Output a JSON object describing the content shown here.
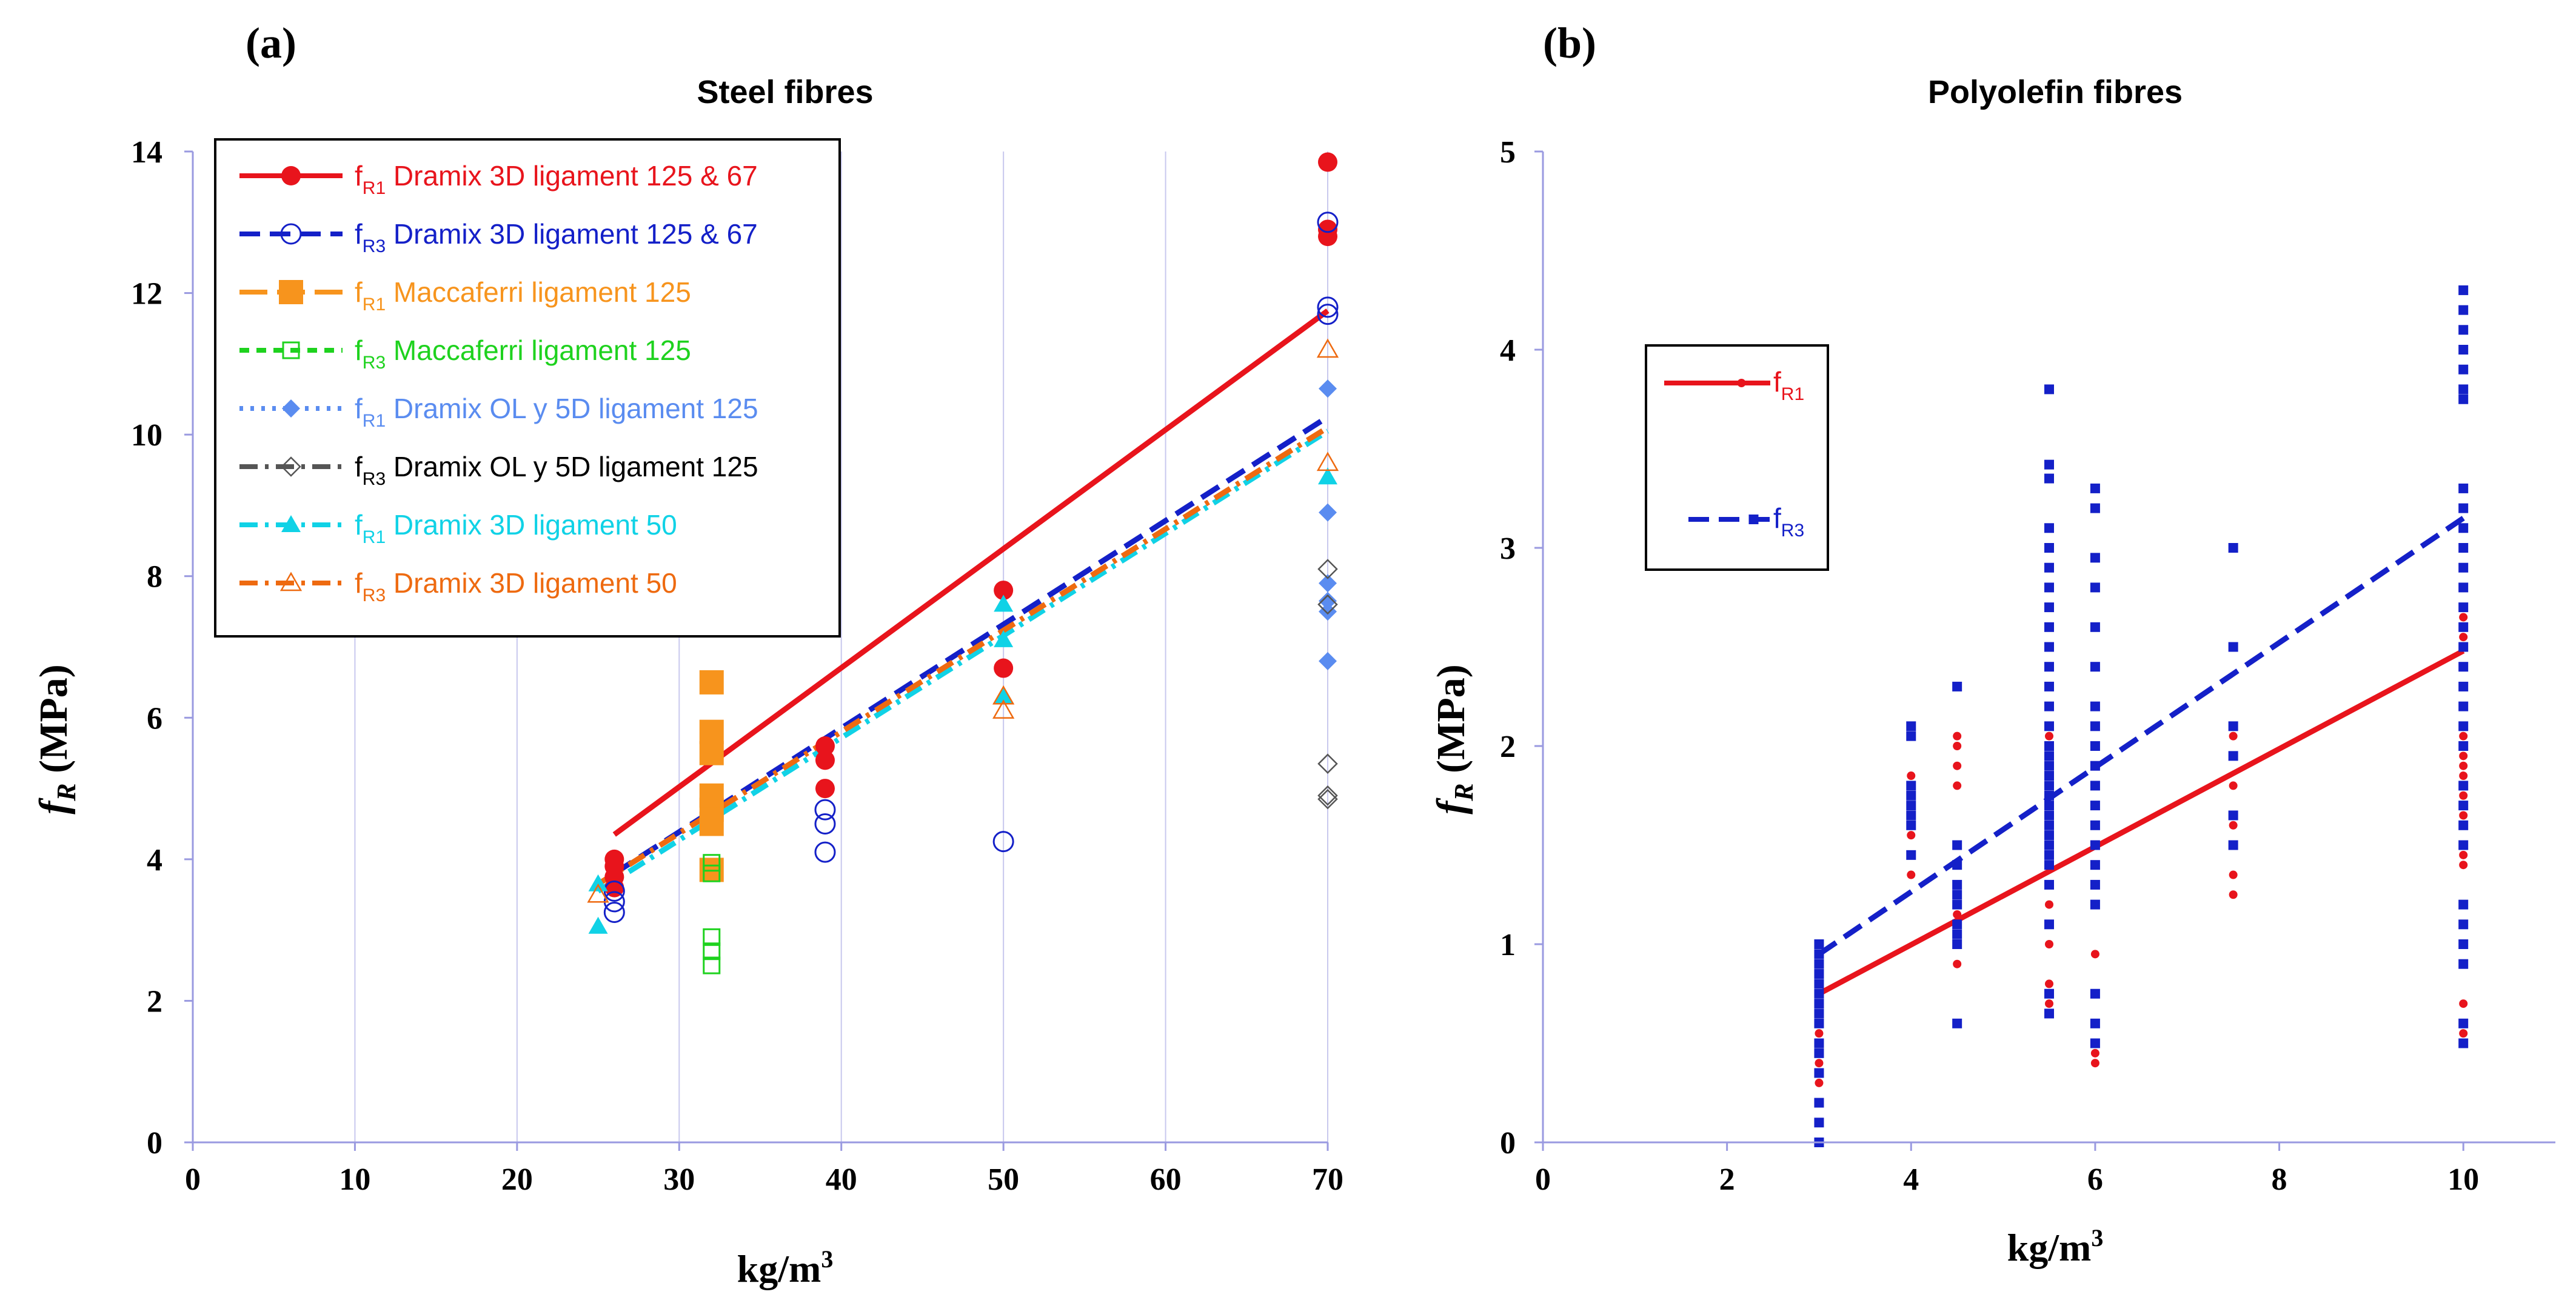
{
  "chart_data": [
    {
      "panel": "(a)",
      "type": "scatter",
      "title": "Steel fibres",
      "xlabel": "kg/m3",
      "ylabel": "fR (MPa)",
      "xlim": [
        0,
        70
      ],
      "ylim": [
        0,
        14
      ],
      "xticks": [
        0,
        10,
        20,
        30,
        40,
        50,
        60,
        70
      ],
      "yticks": [
        0,
        2,
        4,
        6,
        8,
        10,
        12,
        14
      ],
      "legend_position": "top-left",
      "series": [
        {
          "name": "fR1 Dramix 3D ligament 125 & 67",
          "sym": "f",
          "sub": "R1",
          "text": "Dramix 3D ligament 125 & 67",
          "color": "#e8141c",
          "text_color": "#e8141c",
          "marker": "circle-filled",
          "dash": "solid",
          "points": [
            [
              26,
              3.6
            ],
            [
              26,
              3.75
            ],
            [
              26,
              3.9
            ],
            [
              26,
              4.0
            ],
            [
              39,
              5.0
            ],
            [
              39,
              5.4
            ],
            [
              39,
              5.6
            ],
            [
              50,
              6.7
            ],
            [
              50,
              7.8
            ],
            [
              70,
              12.8
            ],
            [
              70,
              12.9
            ],
            [
              70,
              13.85
            ]
          ],
          "fit": [
            [
              26,
              4.35
            ],
            [
              70,
              11.75
            ]
          ]
        },
        {
          "name": "fR3 Dramix 3D ligament 125 & 67",
          "sym": "f",
          "sub": "R3",
          "text": "Dramix 3D ligament 125 & 67",
          "color": "#1420c8",
          "text_color": "#1420c8",
          "marker": "circle-open",
          "dash": "dash",
          "points": [
            [
              26,
              3.25
            ],
            [
              26,
              3.4
            ],
            [
              26,
              3.55
            ],
            [
              39,
              4.1
            ],
            [
              39,
              4.5
            ],
            [
              39,
              4.7
            ],
            [
              50,
              4.25
            ],
            [
              70,
              11.7
            ],
            [
              70,
              11.8
            ],
            [
              70,
              13.0
            ]
          ],
          "fit": [
            [
              26,
              3.8
            ],
            [
              70,
              10.25
            ]
          ]
        },
        {
          "name": "fR1 Maccaferri ligament 125",
          "sym": "f",
          "sub": "R1",
          "text": "Maccaferri ligament 125",
          "color": "#f7941d",
          "text_color": "#f7941d",
          "marker": "square-filled",
          "dash": "longdash",
          "points": [
            [
              32,
              3.85
            ],
            [
              32,
              4.5
            ],
            [
              32,
              4.7
            ],
            [
              32,
              4.9
            ],
            [
              32,
              5.5
            ],
            [
              32,
              5.8
            ],
            [
              32,
              6.5
            ]
          ],
          "fit": null
        },
        {
          "name": "fR3 Maccaferri ligament 125",
          "sym": "f",
          "sub": "R3",
          "text": "Maccaferri ligament 125",
          "color": "#1ed21e",
          "text_color": "#1ed21e",
          "marker": "square-open",
          "dash": "shortdash",
          "points": [
            [
              32,
              2.5
            ],
            [
              32,
              2.7
            ],
            [
              32,
              2.9
            ],
            [
              32,
              3.8
            ],
            [
              32,
              3.95
            ]
          ],
          "fit": null
        },
        {
          "name": "fR1 Dramix OL y 5D ligament 125",
          "sym": "f",
          "sub": "R1",
          "text": "Dramix OL y 5D ligament 125",
          "color": "#5a8cf0",
          "text_color": "#5a8cf0",
          "marker": "diamond-filled",
          "dash": "dot",
          "points": [
            [
              70,
              6.8
            ],
            [
              70,
              7.5
            ],
            [
              70,
              7.65
            ],
            [
              70,
              7.9
            ],
            [
              70,
              8.9
            ],
            [
              70,
              10.65
            ]
          ],
          "fit": null
        },
        {
          "name": "fR3 Dramix OL y 5D ligament 125",
          "sym": "f",
          "sub": "R3",
          "text": "Dramix OL y 5D ligament 125",
          "color": "#555555",
          "text_color": "#000000",
          "marker": "diamond-open",
          "dash": "dashdot",
          "points": [
            [
              70,
              4.85
            ],
            [
              70,
              4.9
            ],
            [
              70,
              5.35
            ],
            [
              70,
              7.6
            ],
            [
              70,
              8.1
            ]
          ],
          "fit": null
        },
        {
          "name": "fR1 Dramix 3D ligament 50",
          "sym": "f",
          "sub": "R1",
          "text": "Dramix 3D ligament 50",
          "color": "#10d2e6",
          "text_color": "#10d2e6",
          "marker": "triangle-filled",
          "dash": "dashdot",
          "points": [
            [
              25,
              3.05
            ],
            [
              25,
              3.65
            ],
            [
              50,
              6.3
            ],
            [
              50,
              7.1
            ],
            [
              50,
              7.6
            ],
            [
              70,
              9.4
            ]
          ],
          "fit": [
            [
              25,
              3.55
            ],
            [
              70,
              10.05
            ]
          ]
        },
        {
          "name": "fR3 Dramix 3D ligament 50",
          "sym": "f",
          "sub": "R3",
          "text": "Dramix 3D ligament 50",
          "color": "#ee6a10",
          "text_color": "#ee6a10",
          "marker": "triangle-open",
          "dash": "dashdot",
          "points": [
            [
              25,
              3.5
            ],
            [
              50,
              6.1
            ],
            [
              50,
              6.3
            ],
            [
              70,
              9.6
            ],
            [
              70,
              11.2
            ]
          ],
          "fit": [
            [
              25,
              3.65
            ],
            [
              70,
              10.1
            ]
          ]
        }
      ]
    },
    {
      "panel": "(b)",
      "type": "scatter",
      "title": "Polyolefin fibres",
      "xlabel": "kg/m3",
      "ylabel": "fR (MPa)",
      "xlim": [
        0,
        11
      ],
      "ylim": [
        0,
        5
      ],
      "xticks": [
        0,
        2,
        4,
        6,
        8,
        10
      ],
      "yticks": [
        0,
        1,
        2,
        3,
        4,
        5
      ],
      "legend_position": "upper-left",
      "series": [
        {
          "name": "fR1",
          "sym": "f",
          "sub": "R1",
          "text": "",
          "color": "#e8141c",
          "marker": "dot-small",
          "dash": "solid",
          "groups": [
            {
              "x": 3,
              "values": [
                0.3,
                0.35,
                0.4,
                0.5,
                0.55,
                0.6,
                0.65,
                0.7,
                0.75,
                0.8,
                0.85,
                0.9
              ]
            },
            {
              "x": 4,
              "values": [
                1.35,
                1.45,
                1.55,
                1.6,
                1.65,
                1.7,
                1.75,
                1.8,
                1.85
              ]
            },
            {
              "x": 4.5,
              "values": [
                0.9,
                1.0,
                1.05,
                1.1,
                1.15,
                1.2,
                1.3,
                1.4,
                1.5,
                1.8,
                1.9,
                2.0,
                2.05
              ]
            },
            {
              "x": 5.5,
              "values": [
                0.7,
                0.8,
                1.0,
                1.1,
                1.2,
                1.3,
                1.4,
                1.5,
                1.55,
                1.6,
                1.65,
                1.7,
                1.75,
                1.8,
                1.85,
                1.9,
                1.95,
                2.0,
                2.05,
                2.1,
                2.2,
                2.3,
                2.4,
                2.5,
                2.6,
                2.7,
                3.0,
                3.35
              ]
            },
            {
              "x": 6,
              "values": [
                0.4,
                0.45,
                0.95,
                1.2,
                1.3,
                1.4,
                1.5,
                1.6,
                1.7,
                1.8,
                1.9,
                2.0
              ]
            },
            {
              "x": 7.5,
              "values": [
                1.25,
                1.35,
                1.6,
                1.8,
                2.05
              ]
            },
            {
              "x": 10,
              "values": [
                0.5,
                0.55,
                0.6,
                0.7,
                1.0,
                1.1,
                1.4,
                1.45,
                1.65,
                1.7,
                1.75,
                1.8,
                1.85,
                1.9,
                1.95,
                2.0,
                2.05,
                2.1,
                2.2,
                2.3,
                2.4,
                2.5,
                2.55,
                2.6,
                2.65
              ]
            }
          ],
          "fit": [
            [
              3,
              0.75
            ],
            [
              10,
              2.48
            ]
          ]
        },
        {
          "name": "fR3",
          "sym": "f",
          "sub": "R3",
          "text": "",
          "color": "#1420c8",
          "marker": "square-small",
          "dash": "dash",
          "groups": [
            {
              "x": 3,
              "values": [
                0.0,
                0.1,
                0.2,
                0.35,
                0.45,
                0.5,
                0.6,
                0.65,
                0.7,
                0.75,
                0.8,
                0.85,
                0.9,
                0.95,
                1.0
              ]
            },
            {
              "x": 4,
              "values": [
                1.45,
                1.6,
                1.65,
                1.7,
                1.75,
                1.8,
                2.05,
                2.1
              ]
            },
            {
              "x": 4.5,
              "values": [
                0.6,
                1.0,
                1.05,
                1.1,
                1.2,
                1.25,
                1.3,
                1.4,
                1.5,
                2.3
              ]
            },
            {
              "x": 5.5,
              "values": [
                0.65,
                0.75,
                1.1,
                1.3,
                1.4,
                1.45,
                1.5,
                1.55,
                1.6,
                1.65,
                1.7,
                1.75,
                1.8,
                1.85,
                1.9,
                1.95,
                2.0,
                2.1,
                2.2,
                2.3,
                2.4,
                2.5,
                2.6,
                2.7,
                2.8,
                2.9,
                3.0,
                3.1,
                3.35,
                3.42,
                3.8
              ]
            },
            {
              "x": 6,
              "values": [
                0.5,
                0.6,
                0.75,
                1.2,
                1.3,
                1.4,
                1.5,
                1.6,
                1.7,
                1.8,
                1.9,
                2.0,
                2.1,
                2.2,
                2.4,
                2.6,
                2.8,
                2.95,
                3.2,
                3.3
              ]
            },
            {
              "x": 7.5,
              "values": [
                1.5,
                1.65,
                1.95,
                2.1,
                2.5,
                3.0
              ]
            },
            {
              "x": 10,
              "values": [
                0.5,
                0.6,
                0.9,
                1.0,
                1.1,
                1.2,
                1.5,
                1.6,
                1.7,
                1.8,
                2.0,
                2.1,
                2.2,
                2.3,
                2.4,
                2.5,
                2.6,
                2.7,
                2.8,
                2.9,
                3.0,
                3.1,
                3.2,
                3.3,
                3.75,
                3.8,
                3.9,
                4.0,
                4.1,
                4.2,
                4.3
              ]
            }
          ],
          "fit": [
            [
              3,
              0.95
            ],
            [
              10,
              3.15
            ]
          ]
        }
      ]
    }
  ]
}
